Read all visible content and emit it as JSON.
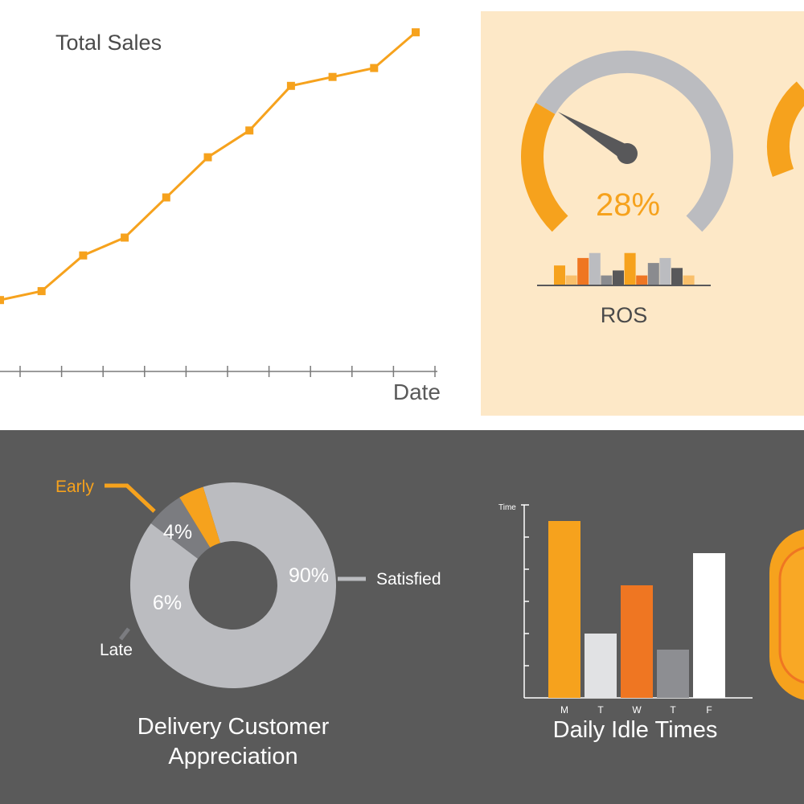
{
  "colors": {
    "orange": "#f6a21d",
    "dark_orange": "#ef7622",
    "light_orange": "#f9bf6a",
    "gray": "#bbbcc0",
    "dark_gray_bg": "#5a5a5a",
    "cream_bg": "#fde8c7",
    "needle": "#58585a",
    "white": "#ffffff"
  },
  "chart_data": [
    {
      "type": "line",
      "title": "Total Sales",
      "xlabel": "Date",
      "ylabel": "",
      "x": [
        1,
        2,
        3,
        4,
        5,
        6,
        7,
        8,
        9,
        10,
        11
      ],
      "values": [
        16,
        18,
        26,
        30,
        39,
        48,
        54,
        64,
        66,
        68,
        76
      ],
      "ylim": [
        0,
        80
      ],
      "grid": false
    },
    {
      "type": "gauge",
      "value_label": "28%",
      "value": 28,
      "label": "ROS",
      "mini_bars": [
        {
          "value": 4,
          "color": "#f6a21d"
        },
        {
          "value": 2,
          "color": "#f9bf6a"
        },
        {
          "value": 5.5,
          "color": "#ef7622"
        },
        {
          "value": 6.5,
          "color": "#bbbcc0"
        },
        {
          "value": 2,
          "color": "#8a8b8f"
        },
        {
          "value": 3,
          "color": "#58585a"
        },
        {
          "value": 6.5,
          "color": "#f6a21d"
        },
        {
          "value": 2,
          "color": "#ef7622"
        },
        {
          "value": 4.5,
          "color": "#8a8b8f"
        },
        {
          "value": 5.5,
          "color": "#bbbcc0"
        },
        {
          "value": 3.5,
          "color": "#58585a"
        },
        {
          "value": 2,
          "color": "#f9bf6a"
        }
      ]
    },
    {
      "type": "pie",
      "title": "Delivery Customer Appreciation",
      "title_lines": [
        "Delivery Customer",
        "Appreciation"
      ],
      "slices": [
        {
          "name": "Satisfied",
          "label": "90%",
          "value": 90,
          "color": "#bbbcc0"
        },
        {
          "name": "Early",
          "label": "4%",
          "value": 4,
          "color": "#f6a21d"
        },
        {
          "name": "Late",
          "label": "6%",
          "value": 6,
          "color": "#7b7c80"
        }
      ]
    },
    {
      "type": "bar",
      "title": "Daily Idle Times",
      "ylabel": "Time",
      "categories": [
        "M",
        "T",
        "W",
        "T",
        "F"
      ],
      "series": [
        {
          "values": [
            5.5,
            2.0,
            3.5,
            1.5,
            4.5
          ]
        }
      ],
      "bar_colors": [
        "#f6a21d",
        "#e1e2e4",
        "#ef7622",
        "#8d8e92",
        "#ffffff"
      ],
      "ylim": [
        0,
        6
      ]
    }
  ]
}
